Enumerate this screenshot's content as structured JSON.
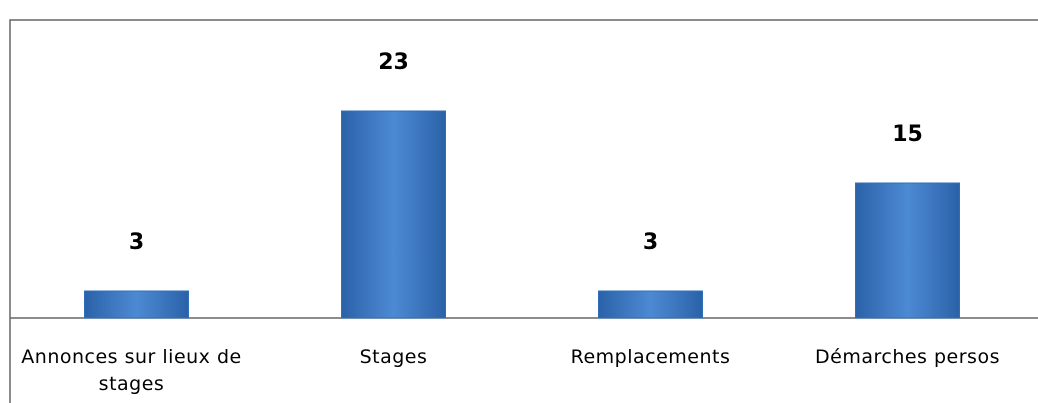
{
  "chart_data": {
    "type": "bar",
    "categories": [
      "Annonces sur lieux de stages",
      "Stages",
      "Remplacements",
      "Démarches persos"
    ],
    "values": [
      3,
      23,
      3,
      15
    ],
    "color": "#2f6fba"
  }
}
